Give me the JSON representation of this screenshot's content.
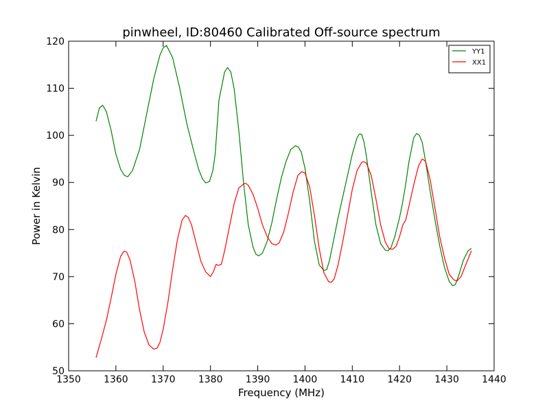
{
  "chart_data": {
    "type": "line",
    "title": "pinwheel, ID:80460 Calibrated Off-source spectrum",
    "xlabel": "Frequency (MHz)",
    "ylabel": "Power in Kelvin",
    "xlim": [
      1350,
      1440
    ],
    "ylim": [
      50,
      120
    ],
    "xticks": [
      1350,
      1360,
      1370,
      1380,
      1390,
      1400,
      1410,
      1420,
      1430,
      1440
    ],
    "yticks": [
      50,
      60,
      70,
      80,
      90,
      100,
      110,
      120
    ],
    "xtick_labels": [
      "1350",
      "1360",
      "1370",
      "1380",
      "1390",
      "1400",
      "1410",
      "1420",
      "1430",
      "1440"
    ],
    "ytick_labels": [
      "50",
      "60",
      "70",
      "80",
      "90",
      "100",
      "110",
      "120"
    ],
    "grid": false,
    "legend_position": "top-right",
    "series": [
      {
        "name": "YY1",
        "color": "#008000",
        "x": [
          1355.8,
          1356.5,
          1357.2,
          1358.0,
          1359.0,
          1360.0,
          1361.0,
          1361.8,
          1362.5,
          1363.5,
          1365.0,
          1366.5,
          1368.0,
          1369.3,
          1370.0,
          1370.7,
          1372.0,
          1373.5,
          1375.0,
          1376.5,
          1377.5,
          1378.3,
          1379.0,
          1379.8,
          1380.5,
          1381.0,
          1381.8,
          1382.5,
          1383.0,
          1383.6,
          1384.3,
          1385.0,
          1386.0,
          1387.0,
          1388.0,
          1389.0,
          1389.6,
          1390.2,
          1391.0,
          1392.0,
          1393.0,
          1394.0,
          1395.0,
          1396.0,
          1397.0,
          1398.0,
          1398.6,
          1399.2,
          1400.0,
          1401.0,
          1402.0,
          1403.0,
          1404.0,
          1404.6,
          1405.2,
          1406.0,
          1407.0,
          1408.0,
          1409.0,
          1410.0,
          1411.0,
          1411.5,
          1412.0,
          1412.5,
          1413.0,
          1414.0,
          1415.0,
          1416.0,
          1417.0,
          1417.6,
          1418.2,
          1419.0,
          1420.0,
          1420.6,
          1421.2,
          1422.0,
          1423.0,
          1423.6,
          1424.2,
          1424.8,
          1425.5,
          1426.5,
          1427.5,
          1428.5,
          1429.5,
          1430.5,
          1431.2,
          1431.8,
          1432.5,
          1433.5,
          1434.5,
          1435.2
        ],
        "values": [
          103.0,
          105.8,
          106.4,
          105.0,
          101.0,
          96.0,
          92.8,
          91.5,
          91.2,
          92.5,
          97.0,
          104.5,
          112.0,
          117.0,
          118.6,
          119.1,
          116.5,
          110.0,
          102.5,
          96.5,
          92.8,
          90.8,
          89.9,
          90.2,
          92.5,
          96.0,
          107.5,
          111.0,
          113.5,
          114.4,
          113.5,
          110.0,
          101.0,
          90.0,
          81.0,
          76.3,
          74.8,
          74.4,
          75.0,
          77.5,
          81.5,
          86.5,
          91.0,
          94.5,
          97.0,
          97.8,
          97.5,
          96.5,
          93.0,
          86.0,
          77.5,
          72.5,
          71.3,
          71.5,
          73.5,
          77.5,
          82.5,
          87.0,
          91.5,
          96.0,
          99.5,
          100.3,
          100.2,
          98.5,
          95.5,
          88.0,
          81.0,
          77.0,
          75.6,
          75.5,
          76.2,
          78.5,
          82.5,
          85.5,
          89.0,
          94.5,
          99.5,
          100.4,
          100.0,
          98.5,
          94.5,
          88.0,
          82.0,
          76.5,
          72.0,
          69.0,
          68.1,
          68.3,
          70.2,
          73.5,
          75.5,
          76.0
        ]
      },
      {
        "name": "XX1",
        "color": "#ff0000",
        "x": [
          1355.8,
          1357.0,
          1358.0,
          1359.0,
          1360.0,
          1361.0,
          1361.7,
          1362.3,
          1363.0,
          1364.0,
          1365.0,
          1366.0,
          1367.0,
          1368.0,
          1368.7,
          1369.3,
          1370.0,
          1371.0,
          1372.0,
          1373.0,
          1374.0,
          1374.7,
          1375.3,
          1376.0,
          1377.0,
          1378.0,
          1379.0,
          1380.0,
          1380.6,
          1381.2,
          1381.7,
          1382.3,
          1383.0,
          1384.0,
          1385.0,
          1386.0,
          1387.0,
          1387.5,
          1388.0,
          1389.0,
          1390.0,
          1391.0,
          1392.0,
          1393.0,
          1393.8,
          1394.5,
          1395.5,
          1396.5,
          1397.5,
          1398.5,
          1399.3,
          1400.0,
          1401.0,
          1402.0,
          1403.0,
          1404.0,
          1405.0,
          1405.6,
          1406.2,
          1407.0,
          1408.0,
          1409.0,
          1410.0,
          1411.0,
          1412.0,
          1412.5,
          1413.0,
          1414.0,
          1415.0,
          1416.0,
          1417.0,
          1417.8,
          1418.5,
          1419.3,
          1420.0,
          1420.7,
          1421.3,
          1422.0,
          1423.0,
          1424.0,
          1424.8,
          1425.5,
          1426.5,
          1427.5,
          1428.5,
          1429.5,
          1430.5,
          1431.5,
          1432.2,
          1433.0,
          1434.0,
          1435.2
        ],
        "values": [
          52.8,
          57.0,
          60.8,
          65.5,
          70.5,
          74.3,
          75.4,
          75.2,
          73.5,
          69.0,
          63.0,
          58.2,
          55.5,
          54.6,
          54.8,
          56.0,
          58.8,
          64.5,
          71.5,
          77.8,
          82.0,
          83.0,
          82.6,
          81.0,
          77.0,
          73.2,
          71.0,
          70.0,
          71.0,
          72.6,
          72.4,
          72.6,
          75.5,
          80.5,
          85.5,
          88.8,
          89.7,
          89.8,
          89.4,
          87.5,
          84.5,
          81.0,
          78.5,
          77.0,
          76.7,
          77.1,
          79.5,
          83.5,
          88.0,
          91.5,
          92.3,
          92.0,
          89.0,
          83.0,
          76.0,
          70.8,
          68.9,
          68.8,
          69.6,
          72.5,
          77.5,
          83.0,
          88.5,
          92.5,
          94.3,
          94.4,
          94.1,
          91.5,
          86.5,
          81.0,
          77.3,
          75.9,
          75.8,
          76.5,
          78.5,
          81.0,
          82.0,
          85.0,
          89.5,
          93.5,
          95.0,
          94.5,
          90.5,
          84.5,
          78.5,
          74.0,
          70.5,
          69.3,
          69.1,
          70.0,
          72.5,
          75.5
        ]
      }
    ]
  }
}
